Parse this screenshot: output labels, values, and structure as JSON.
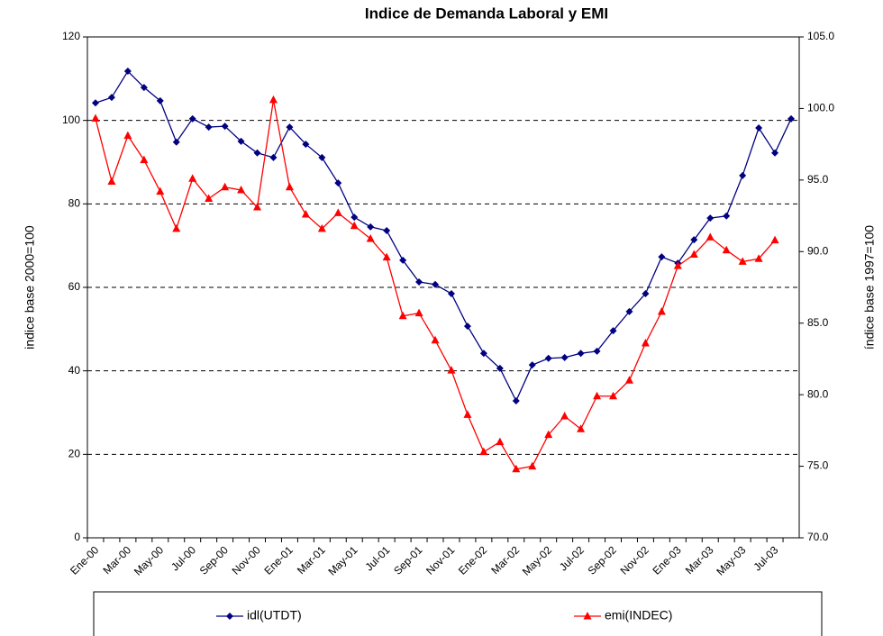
{
  "chart_data": {
    "type": "line",
    "title": "Indice de Demanda Laboral y EMI",
    "y_label": "indice base 2000=100",
    "y2_label": "índice base 1997=100",
    "categories": [
      "Ene-00",
      null,
      "Mar-00",
      null,
      "May-00",
      null,
      "Jul-00",
      null,
      "Sep-00",
      null,
      "Nov-00",
      null,
      "Ene-01",
      null,
      "Mar-01",
      null,
      "May-01",
      null,
      "Jul-01",
      null,
      "Sep-01",
      null,
      "Nov-01",
      null,
      "Ene-02",
      null,
      "Mar-02",
      null,
      "May-02",
      null,
      "Jul-02",
      null,
      "Sep-02",
      null,
      "Nov-02",
      null,
      "Ene-03",
      null,
      "Mar-03",
      null,
      "May-03",
      null,
      "Jul-03",
      null
    ],
    "series": [
      {
        "name": "idl(UTDT)",
        "color": "#000080",
        "marker": "diamond",
        "values": [
          104.2,
          105.5,
          111.8,
          107.9,
          104.7,
          94.8,
          100.4,
          98.4,
          98.6,
          95.0,
          92.2,
          91.1,
          98.4,
          94.3,
          91.1,
          85.0,
          76.8,
          74.5,
          73.6,
          66.5,
          61.3,
          60.7,
          58.5,
          50.7,
          44.2,
          40.6,
          32.8,
          41.4,
          43.0,
          43.2,
          44.2,
          44.7,
          49.6,
          54.2,
          58.5,
          67.3,
          65.8,
          71.4,
          76.6,
          77.1,
          86.8,
          98.2,
          92.2,
          100.4
        ]
      },
      {
        "name": "emi(INDEC)",
        "color": "#ff0000",
        "marker": "triangle",
        "axis": "y2",
        "values": [
          99.3,
          94.9,
          98.1,
          96.4,
          94.2,
          91.6,
          95.1,
          93.7,
          94.5,
          94.3,
          93.1,
          100.6,
          94.5,
          92.6,
          91.6,
          92.7,
          91.8,
          90.9,
          89.6,
          85.5,
          85.7,
          83.8,
          81.7,
          78.6,
          76.0,
          76.7,
          74.8,
          75.0,
          77.2,
          78.5,
          77.6,
          79.9,
          79.9,
          81.0,
          83.6,
          85.8,
          89.0,
          89.8,
          91.0,
          90.1,
          89.3,
          89.5,
          90.8,
          null
        ]
      }
    ],
    "ylim": [
      0,
      120
    ],
    "yticks": [
      0,
      20,
      40,
      60,
      80,
      100,
      120
    ],
    "y2lim": [
      70,
      105
    ],
    "y2ticks": [
      {
        "value": 70,
        "label": "70.0"
      },
      {
        "value": 75,
        "label": "75.0"
      },
      {
        "value": 80,
        "label": "80.0"
      },
      {
        "value": 85,
        "label": "85.0"
      },
      {
        "value": 90,
        "label": "90.0"
      },
      {
        "value": 95,
        "label": "95.0"
      },
      {
        "value": 100,
        "label": "100.0"
      },
      {
        "value": 105,
        "label": "105.0"
      }
    ],
    "grid": true,
    "legend": "bottom"
  }
}
